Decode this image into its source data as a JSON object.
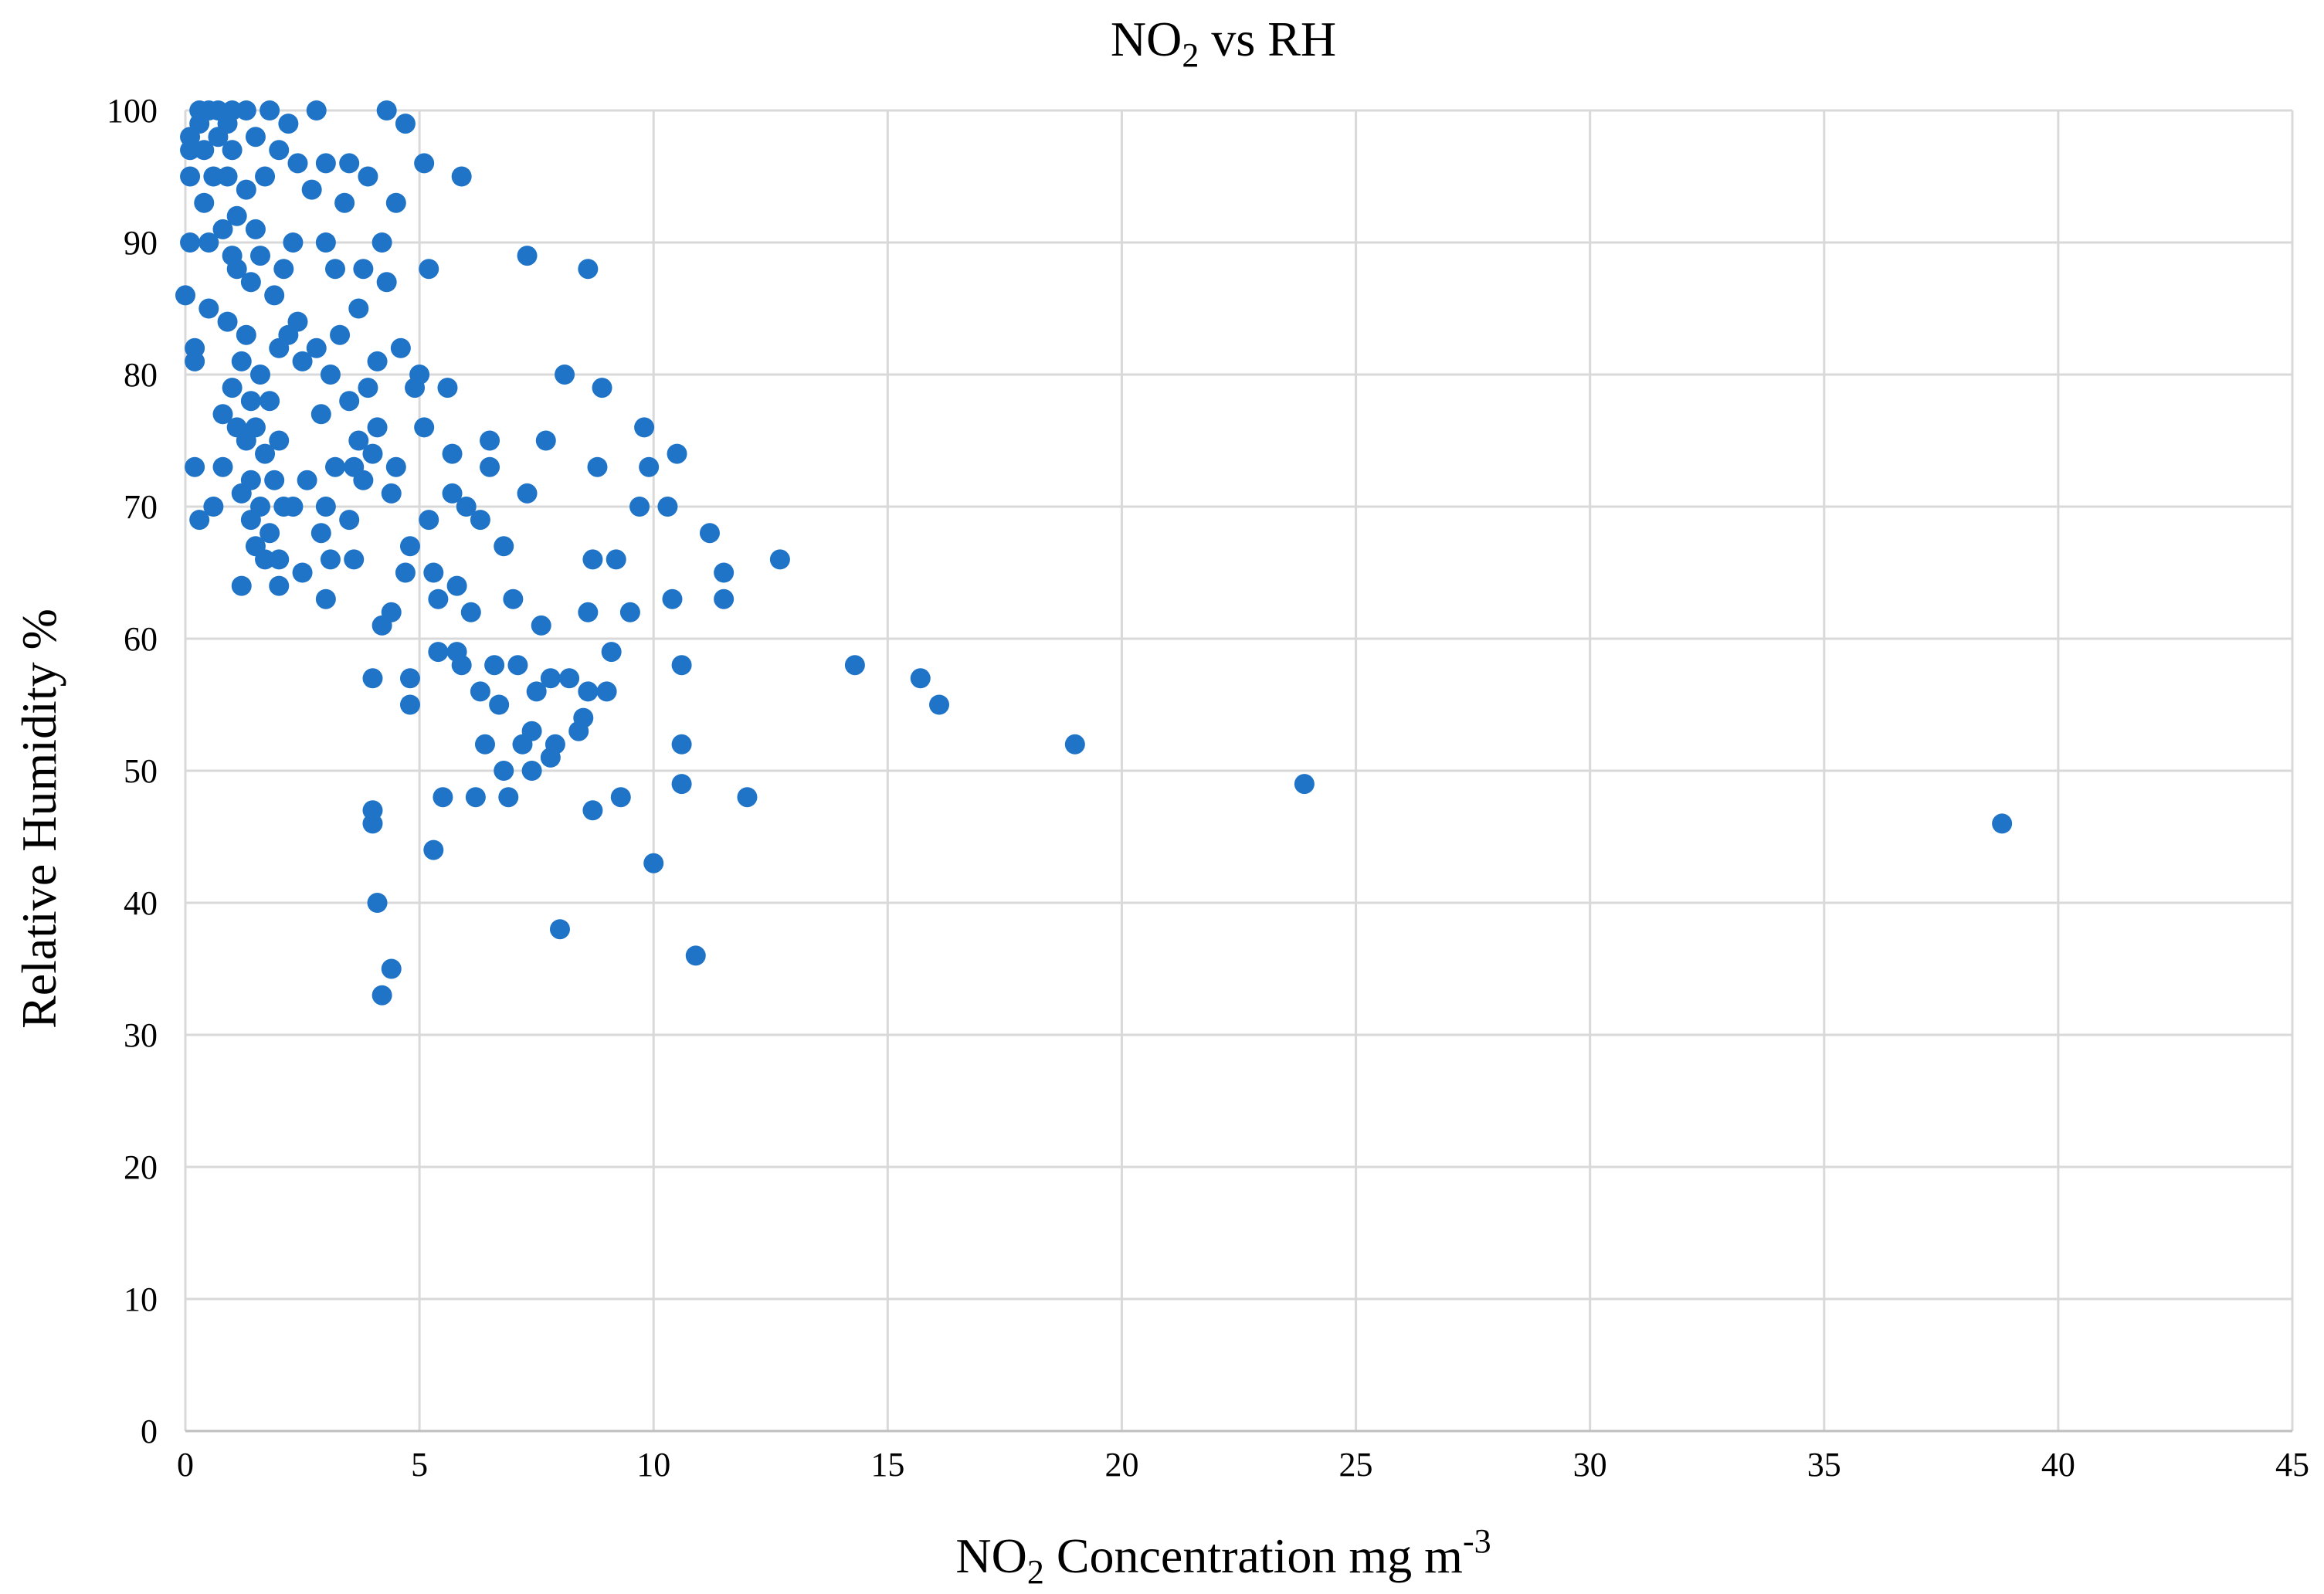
{
  "chart_data": {
    "type": "scatter",
    "title": {
      "main": "NO",
      "sub": "2",
      "rest": " vs RH"
    },
    "xlabel": {
      "main": "NO",
      "sub": "2",
      "rest": " Concentration mg m",
      "sup": "-3"
    },
    "ylabel": "Relative Humidity %",
    "xlim": [
      0,
      45
    ],
    "ylim": [
      0,
      100
    ],
    "xticks": [
      0,
      5,
      10,
      15,
      20,
      25,
      30,
      35,
      40,
      45
    ],
    "yticks": [
      0,
      10,
      20,
      30,
      40,
      50,
      60,
      70,
      80,
      90,
      100
    ],
    "grid": true,
    "point_color": "#1f74c8",
    "series": [
      {
        "points": [
          [
            0.0,
            86
          ],
          [
            0.1,
            90
          ],
          [
            0.1,
            95
          ],
          [
            0.1,
            97
          ],
          [
            0.1,
            98
          ],
          [
            0.2,
            82
          ],
          [
            0.2,
            81
          ],
          [
            0.2,
            73
          ],
          [
            0.3,
            99
          ],
          [
            0.3,
            100
          ],
          [
            0.3,
            69
          ],
          [
            0.4,
            93
          ],
          [
            0.4,
            97
          ],
          [
            0.5,
            100
          ],
          [
            0.5,
            85
          ],
          [
            0.5,
            90
          ],
          [
            0.6,
            70
          ],
          [
            0.6,
            95
          ],
          [
            0.7,
            100
          ],
          [
            0.7,
            98
          ],
          [
            0.8,
            77
          ],
          [
            0.8,
            73
          ],
          [
            0.8,
            91
          ],
          [
            0.9,
            84
          ],
          [
            0.9,
            99
          ],
          [
            0.9,
            95
          ],
          [
            1.0,
            79
          ],
          [
            1.0,
            89
          ],
          [
            1.0,
            100
          ],
          [
            1.0,
            97
          ],
          [
            1.1,
            76
          ],
          [
            1.1,
            88
          ],
          [
            1.1,
            92
          ],
          [
            1.2,
            64
          ],
          [
            1.2,
            71
          ],
          [
            1.2,
            81
          ],
          [
            1.3,
            75
          ],
          [
            1.3,
            83
          ],
          [
            1.3,
            94
          ],
          [
            1.3,
            100
          ],
          [
            1.4,
            69
          ],
          [
            1.4,
            72
          ],
          [
            1.4,
            78
          ],
          [
            1.4,
            87
          ],
          [
            1.5,
            67
          ],
          [
            1.5,
            76
          ],
          [
            1.5,
            91
          ],
          [
            1.5,
            98
          ],
          [
            1.6,
            70
          ],
          [
            1.6,
            80
          ],
          [
            1.6,
            89
          ],
          [
            1.7,
            66
          ],
          [
            1.7,
            74
          ],
          [
            1.7,
            95
          ],
          [
            1.8,
            68
          ],
          [
            1.8,
            78
          ],
          [
            1.8,
            100
          ],
          [
            1.9,
            72
          ],
          [
            1.9,
            86
          ],
          [
            2.0,
            64
          ],
          [
            2.0,
            66
          ],
          [
            2.0,
            75
          ],
          [
            2.0,
            82
          ],
          [
            2.0,
            97
          ],
          [
            2.1,
            70
          ],
          [
            2.1,
            88
          ],
          [
            2.2,
            83
          ],
          [
            2.2,
            99
          ],
          [
            2.3,
            70
          ],
          [
            2.3,
            90
          ],
          [
            2.4,
            84
          ],
          [
            2.4,
            96
          ],
          [
            2.5,
            65
          ],
          [
            2.5,
            81
          ],
          [
            2.6,
            72
          ],
          [
            2.7,
            94
          ],
          [
            2.8,
            82
          ],
          [
            2.8,
            100
          ],
          [
            2.9,
            68
          ],
          [
            2.9,
            77
          ],
          [
            3.0,
            63
          ],
          [
            3.0,
            70
          ],
          [
            3.0,
            90
          ],
          [
            3.0,
            96
          ],
          [
            3.1,
            66
          ],
          [
            3.1,
            80
          ],
          [
            3.2,
            73
          ],
          [
            3.2,
            88
          ],
          [
            3.3,
            83
          ],
          [
            3.4,
            93
          ],
          [
            3.5,
            69
          ],
          [
            3.5,
            78
          ],
          [
            3.5,
            96
          ],
          [
            3.6,
            66
          ],
          [
            3.6,
            73
          ],
          [
            3.7,
            75
          ],
          [
            3.7,
            85
          ],
          [
            3.8,
            72
          ],
          [
            3.8,
            88
          ],
          [
            3.9,
            79
          ],
          [
            3.9,
            95
          ],
          [
            4.0,
            47
          ],
          [
            4.0,
            46
          ],
          [
            4.0,
            57
          ],
          [
            4.0,
            74
          ],
          [
            4.1,
            40
          ],
          [
            4.1,
            76
          ],
          [
            4.1,
            81
          ],
          [
            4.2,
            33
          ],
          [
            4.2,
            61
          ],
          [
            4.2,
            90
          ],
          [
            4.3,
            87
          ],
          [
            4.3,
            100
          ],
          [
            4.4,
            35
          ],
          [
            4.4,
            62
          ],
          [
            4.4,
            71
          ],
          [
            4.5,
            73
          ],
          [
            4.5,
            93
          ],
          [
            4.6,
            82
          ],
          [
            4.7,
            65
          ],
          [
            4.7,
            99
          ],
          [
            4.8,
            55
          ],
          [
            4.8,
            57
          ],
          [
            4.8,
            67
          ],
          [
            4.9,
            79
          ],
          [
            5.0,
            80
          ],
          [
            5.1,
            96
          ],
          [
            5.1,
            76
          ],
          [
            5.2,
            69
          ],
          [
            5.2,
            88
          ],
          [
            5.3,
            44
          ],
          [
            5.3,
            65
          ],
          [
            5.4,
            59
          ],
          [
            5.4,
            63
          ],
          [
            5.5,
            48
          ],
          [
            5.6,
            79
          ],
          [
            5.7,
            71
          ],
          [
            5.7,
            74
          ],
          [
            5.8,
            59
          ],
          [
            5.8,
            64
          ],
          [
            5.9,
            58
          ],
          [
            5.9,
            95
          ],
          [
            6.0,
            70
          ],
          [
            6.1,
            62
          ],
          [
            6.2,
            48
          ],
          [
            6.3,
            56
          ],
          [
            6.3,
            69
          ],
          [
            6.4,
            52
          ],
          [
            6.5,
            73
          ],
          [
            6.5,
            75
          ],
          [
            6.6,
            58
          ],
          [
            6.7,
            55
          ],
          [
            6.8,
            50
          ],
          [
            6.8,
            67
          ],
          [
            6.9,
            48
          ],
          [
            7.0,
            63
          ],
          [
            7.1,
            58
          ],
          [
            7.2,
            52
          ],
          [
            7.3,
            71
          ],
          [
            7.3,
            89
          ],
          [
            7.4,
            50
          ],
          [
            7.4,
            53
          ],
          [
            7.5,
            56
          ],
          [
            7.6,
            61
          ],
          [
            7.7,
            75
          ],
          [
            7.8,
            57
          ],
          [
            7.8,
            51
          ],
          [
            7.9,
            52
          ],
          [
            8.0,
            38
          ],
          [
            8.1,
            80
          ],
          [
            8.2,
            57
          ],
          [
            8.4,
            53
          ],
          [
            8.5,
            54
          ],
          [
            8.6,
            56
          ],
          [
            8.6,
            62
          ],
          [
            8.6,
            88
          ],
          [
            8.7,
            47
          ],
          [
            8.7,
            66
          ],
          [
            8.8,
            73
          ],
          [
            8.9,
            79
          ],
          [
            9.0,
            56
          ],
          [
            9.1,
            59
          ],
          [
            9.2,
            66
          ],
          [
            9.3,
            48
          ],
          [
            9.5,
            62
          ],
          [
            9.7,
            70
          ],
          [
            9.8,
            76
          ],
          [
            9.9,
            73
          ],
          [
            10.0,
            43
          ],
          [
            10.3,
            70
          ],
          [
            10.4,
            63
          ],
          [
            10.5,
            74
          ],
          [
            10.6,
            49
          ],
          [
            10.6,
            52
          ],
          [
            10.6,
            58
          ],
          [
            10.9,
            36
          ],
          [
            11.2,
            68
          ],
          [
            11.5,
            65
          ],
          [
            11.5,
            63
          ],
          [
            12.0,
            48
          ],
          [
            12.7,
            66
          ],
          [
            14.3,
            58
          ],
          [
            15.7,
            57
          ],
          [
            16.1,
            55
          ],
          [
            19.0,
            52
          ],
          [
            23.9,
            49
          ],
          [
            38.8,
            46
          ]
        ]
      }
    ]
  }
}
